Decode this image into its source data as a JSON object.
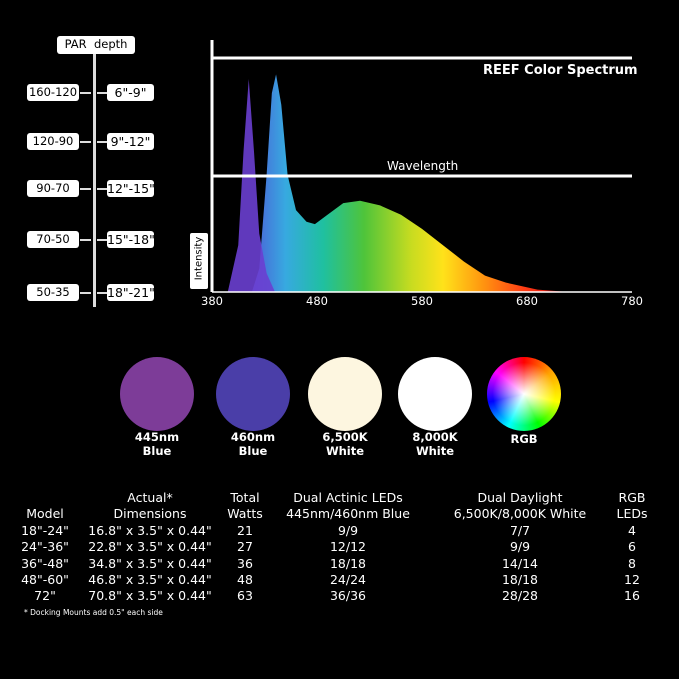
{
  "par_depth": {
    "header": "PAR  depth",
    "rows": [
      {
        "par": "160-120",
        "depth": "6\"-9\""
      },
      {
        "par": "120-90",
        "depth": "9\"-12\""
      },
      {
        "par": "90-70",
        "depth": "12\"-15\""
      },
      {
        "par": "70-50",
        "depth": "15\"-18\""
      },
      {
        "par": "50-35",
        "depth": "18\"-21\""
      }
    ]
  },
  "chart_data": {
    "type": "area",
    "title": "REEF Color Spectrum",
    "xlabel": "Wavelength",
    "ylabel": "Intensity",
    "xlim": [
      380,
      780
    ],
    "xticks": [
      "380",
      "480",
      "580",
      "680",
      "780"
    ],
    "series": [
      {
        "color": "#6a3fd0",
        "x": [
          395,
          405,
          410,
          415,
          420,
          425,
          432,
          440
        ],
        "y": [
          0,
          0.2,
          0.6,
          0.91,
          0.6,
          0.25,
          0.08,
          0
        ]
      },
      {
        "color": "spectrum",
        "x": [
          418,
          425,
          432,
          437,
          441,
          446,
          452,
          460,
          470,
          478,
          490,
          505,
          521,
          540,
          560,
          580,
          600,
          620,
          640,
          660,
          690,
          720
        ],
        "y": [
          0,
          0.1,
          0.5,
          0.85,
          0.93,
          0.8,
          0.5,
          0.35,
          0.3,
          0.29,
          0.33,
          0.38,
          0.39,
          0.37,
          0.33,
          0.27,
          0.2,
          0.13,
          0.07,
          0.04,
          0.01,
          0
        ]
      }
    ],
    "grid": false
  },
  "swatches": [
    {
      "label1": "445nm",
      "label2": "Blue",
      "color": "#7d3c98"
    },
    {
      "label1": "460nm",
      "label2": "Blue",
      "color": "#4a3ea8"
    },
    {
      "label1": "6,500K",
      "label2": "White",
      "color": "#fdf6e0"
    },
    {
      "label1": "8,000K",
      "label2": "White",
      "color": "#ffffff"
    },
    {
      "label1": "RGB",
      "label2": "",
      "color": "conic"
    }
  ],
  "table": {
    "headers": [
      [
        "",
        "Model"
      ],
      [
        "Actual*",
        "Dimensions"
      ],
      [
        "Total",
        "Watts"
      ],
      [
        "Dual Actinic LEDs",
        "445nm/460nm Blue"
      ],
      [
        "Dual Daylight",
        "6,500K/8,000K White"
      ],
      [
        "RGB",
        "LEDs"
      ]
    ],
    "rows": [
      [
        "18\"-24\"",
        "16.8\" x 3.5\" x 0.44\"",
        "21",
        "9/9",
        "7/7",
        "4"
      ],
      [
        "24\"-36\"",
        "22.8\" x 3.5\" x 0.44\"",
        "27",
        "12/12",
        "9/9",
        "6"
      ],
      [
        "36\"-48\"",
        "34.8\" x 3.5\" x 0.44\"",
        "36",
        "18/18",
        "14/14",
        "8"
      ],
      [
        "48\"-60\"",
        "46.8\" x 3.5\" x 0.44\"",
        "48",
        "24/24",
        "18/18",
        "12"
      ],
      [
        "72\"",
        "70.8\" x 3.5\" x 0.44\"",
        "63",
        "36/36",
        "28/28",
        "16"
      ]
    ],
    "footnote": "* Docking Mounts add 0.5\" each side"
  }
}
